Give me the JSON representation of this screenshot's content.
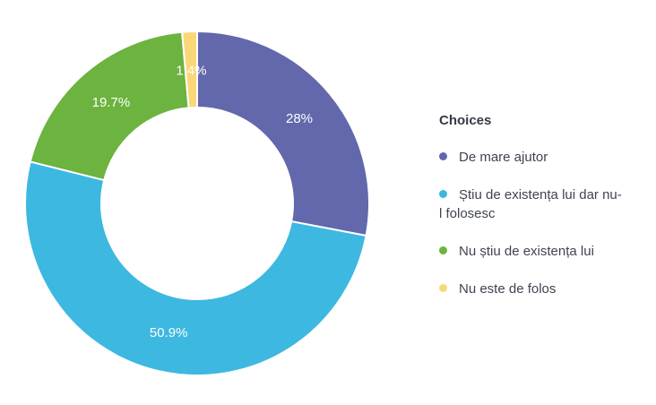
{
  "chart_data": {
    "type": "pie",
    "donut": true,
    "start_angle_deg": 0,
    "direction": "clockwise",
    "legend_title": "Choices",
    "legend_position": "right",
    "label_color": "#ffffff",
    "background": "#ffffff",
    "slices": [
      {
        "label": "De mare ajutor",
        "value": 28,
        "display": "28%",
        "color": "#6268ab"
      },
      {
        "label": "Știu de existența lui dar nu-l folosesc",
        "value": 50.9,
        "display": "50.9%",
        "color": "#3db8e0"
      },
      {
        "label": "Nu știu de existența lui",
        "value": 19.7,
        "display": "19.7%",
        "color": "#6cb33f"
      },
      {
        "label": "Nu este de folos",
        "value": 1.4,
        "display": "1.4%",
        "color": "#fad878"
      }
    ]
  }
}
